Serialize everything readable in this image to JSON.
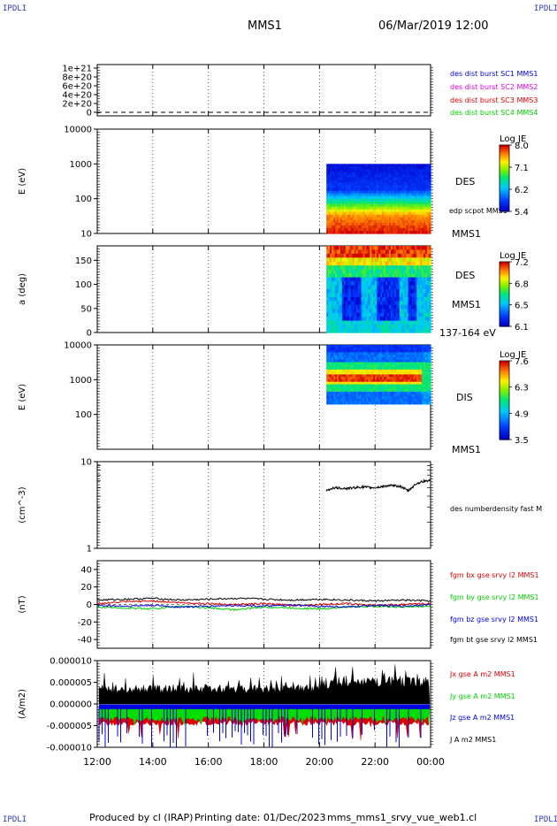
{
  "corners": {
    "top_left": "IPDLI",
    "top_right": "IPDLI",
    "bottom_left": "IPDLI",
    "bottom_right": "IPDLI"
  },
  "header": {
    "spacecraft": "MMS1",
    "date": "06/Mar/2019 12:00"
  },
  "footer": {
    "credit": "Produced by cl (IRAP)",
    "printing": "Printing date: 01/Dec/2023",
    "file": "mms_mms1_srvy_vue_web1.cl"
  },
  "time_axis": {
    "ticks": [
      "12:00",
      "14:00",
      "16:00",
      "18:00",
      "20:00",
      "22:00",
      "00:00"
    ],
    "range_hours": [
      12,
      24
    ]
  },
  "colors": {
    "red": "#dd0000",
    "magenta": "#dd00dd",
    "green": "#00cc00",
    "blue": "#0000dd",
    "black": "#000000"
  },
  "chart_data": [
    {
      "type": "line",
      "panel": "dist-burst",
      "yticks": [
        "1e+21",
        "8e+20",
        "6e+20",
        "4e+20",
        "2e+20",
        "0"
      ],
      "ylim": [
        0,
        1.2e+21
      ],
      "legend": [
        {
          "label": "des dist burst SC1 MMS1",
          "color": "#0000dd"
        },
        {
          "label": "des dist burst SC2 MMS2",
          "color": "#dd00dd"
        },
        {
          "label": "des dist burst SC3 MMS3",
          "color": "#dd0000"
        },
        {
          "label": "des dist burst SC4 MMS4",
          "color": "#00cc00"
        }
      ],
      "series": [
        {
          "name": "des dist burst SC1 MMS1",
          "x": [
            12,
            24
          ],
          "values": [
            0,
            0
          ],
          "dashed": true
        }
      ]
    },
    {
      "type": "heatmap",
      "panel": "des-energy",
      "ylabel": "E (eV)",
      "yticks": [
        "10000",
        "1000",
        "100",
        "10"
      ],
      "ylim": [
        10,
        10000
      ],
      "log": true,
      "time_range": [
        20.25,
        24
      ],
      "e_range": [
        10,
        1000
      ],
      "right_labels": [
        "DES",
        "edp scpot MMS1",
        "MMS1"
      ],
      "colorbar": {
        "title": "Log JE",
        "ticks": [
          "8.0",
          "7.1",
          "6.2",
          "5.4"
        ],
        "range": [
          5.4,
          8.0
        ]
      }
    },
    {
      "type": "heatmap",
      "panel": "des-pitch",
      "ylabel": "a (deg)",
      "yticks": [
        "150",
        "100",
        "50",
        "0"
      ],
      "ylim": [
        0,
        180
      ],
      "time_range": [
        20.25,
        24
      ],
      "right_labels": [
        "DES",
        "MMS1",
        "137-164 eV"
      ],
      "colorbar": {
        "title": "Log JE",
        "ticks": [
          "7.2",
          "6.8",
          "6.5",
          "6.1"
        ],
        "range": [
          6.1,
          7.2
        ]
      }
    },
    {
      "type": "heatmap",
      "panel": "dis-energy",
      "ylabel": "E (eV)",
      "yticks": [
        "10000",
        "1000",
        "100"
      ],
      "ylim": [
        10,
        10000
      ],
      "log": true,
      "time_range": [
        20.25,
        24
      ],
      "e_range": [
        200,
        10000
      ],
      "right_labels": [
        "DIS",
        "MMS1"
      ],
      "colorbar": {
        "title": "Log JE",
        "ticks": [
          "7.6",
          "6.3",
          "4.9",
          "3.5"
        ],
        "range": [
          3.5,
          7.6
        ]
      }
    },
    {
      "type": "line",
      "panel": "density",
      "ylabel": "(cm^-3)",
      "yticks": [
        "10",
        "1"
      ],
      "ylim": [
        1,
        10
      ],
      "log": true,
      "legend": [
        {
          "label": "des numberdensity fast M",
          "color": "#000000"
        }
      ],
      "series": [
        {
          "name": "des numberdensity fast M",
          "x": [
            20.25,
            20.5,
            21,
            21.5,
            22,
            22.5,
            22.9,
            23.2,
            23.5,
            23.8,
            24
          ],
          "values": [
            4.6,
            5.0,
            4.9,
            5.1,
            5.0,
            5.3,
            5.2,
            4.6,
            5.6,
            6.0,
            6.1
          ]
        }
      ]
    },
    {
      "type": "line",
      "panel": "fgm",
      "ylabel": "(nT)",
      "yticks": [
        "40",
        "20",
        "0",
        "-20",
        "-40"
      ],
      "ylim": [
        -50,
        50
      ],
      "legend": [
        {
          "label": "fgm bx gse srvy l2 MMS1",
          "color": "#dd0000"
        },
        {
          "label": "fgm by gse srvy l2 MMS1",
          "color": "#00cc00"
        },
        {
          "label": "fgm bz gse srvy l2 MMS1",
          "color": "#0000dd"
        },
        {
          "label": "fgm bt gse srvy l2 MMS1",
          "color": "#000000"
        }
      ],
      "series": [
        {
          "name": "fgm bx gse srvy l2 MMS1",
          "x": [
            12,
            13,
            14,
            15,
            16,
            17,
            18,
            19,
            20,
            21,
            22,
            23,
            24
          ],
          "values": [
            1,
            3,
            4,
            2,
            1,
            0,
            1,
            -1,
            0,
            1,
            -1,
            0,
            1
          ]
        },
        {
          "name": "fgm by gse srvy l2 MMS1",
          "x": [
            12,
            13,
            14,
            15,
            16,
            17,
            18,
            19,
            20,
            21,
            22,
            23,
            24
          ],
          "values": [
            -3,
            -4,
            -5,
            -2,
            -4,
            -6,
            -3,
            -4,
            -5,
            -3,
            -2,
            -3,
            -2
          ]
        },
        {
          "name": "fgm bz gse srvy l2 MMS1",
          "x": [
            12,
            13,
            14,
            15,
            16,
            17,
            18,
            19,
            20,
            21,
            22,
            23,
            24
          ],
          "values": [
            -1,
            -2,
            -1,
            -3,
            -2,
            -1,
            -2,
            -1,
            -2,
            -3,
            -1,
            -2,
            0
          ]
        },
        {
          "name": "fgm bt gse srvy l2 MMS1",
          "x": [
            12,
            13,
            14,
            15,
            16,
            17,
            18,
            19,
            20,
            21,
            22,
            23,
            24
          ],
          "values": [
            5,
            6,
            7,
            5,
            6,
            7,
            6,
            5,
            6,
            5,
            4,
            5,
            4
          ]
        }
      ]
    },
    {
      "type": "line",
      "panel": "current",
      "ylabel": "(A/m2)",
      "yticks": [
        "0.000010",
        "0.000005",
        "0.000000",
        "-0.000005",
        "-0.000010"
      ],
      "ylim": [
        -1e-05,
        1e-05
      ],
      "legend": [
        {
          "label": "Jx gse A m2 MMS1",
          "color": "#dd0000"
        },
        {
          "label": "Jy gse A m2 MMS1",
          "color": "#00cc00"
        },
        {
          "label": "Jz gse A m2 MMS1",
          "color": "#0000dd"
        },
        {
          "label": "J A m2 MMS1",
          "color": "#000000"
        }
      ],
      "series": [
        {
          "name": "J A m2 MMS1",
          "x": [
            12,
            24
          ],
          "values": [
            4e-06,
            6e-06
          ]
        },
        {
          "name": "Jz gse A m2 MMS1",
          "x": [
            12,
            24
          ],
          "values": [
            -5e-07,
            -5e-07
          ]
        },
        {
          "name": "Jy gse A m2 MMS1",
          "x": [
            12,
            24
          ],
          "values": [
            -3e-06,
            -3e-06
          ]
        },
        {
          "name": "Jx gse A m2 MMS1",
          "x": [
            12,
            24
          ],
          "values": [
            -4e-06,
            -4e-06
          ]
        }
      ]
    }
  ]
}
